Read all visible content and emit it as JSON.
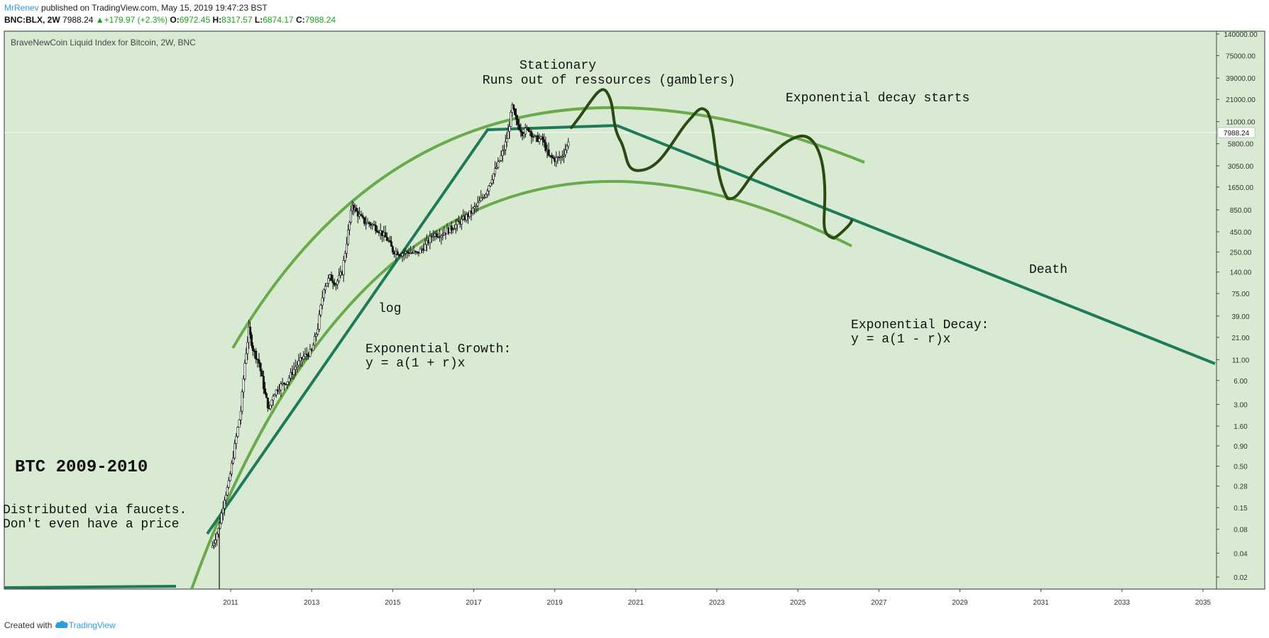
{
  "header": {
    "author": "MrRenev",
    "published": " published on TradingView.com, May 15, 2019 19:47:23 BST"
  },
  "symbol_bar": {
    "symbol": "BNC:BLX, 2W",
    "price": "7988.24",
    "change": "+179.97 (+2.3%)",
    "open_label": "O:",
    "open": "6972.45",
    "high_label": "H:",
    "high": "8317.57",
    "low_label": "L:",
    "low": "6874.17",
    "close_label": "C:",
    "close": "7988.24"
  },
  "footer": {
    "created": "Created with",
    "brand": "TradingView"
  },
  "colors": {
    "background": "#d9ead3",
    "arc": "#6aaa4d",
    "trend": "#1f7a5a",
    "hand": "#2a4a14",
    "candles": "#111111",
    "up_green": "#1aa31a",
    "brand_blue": "#2f9ed8"
  },
  "icons": {
    "tradingview": "tradingview-cloud-icon"
  },
  "chart_data": {
    "type": "candlestick-annotated",
    "title": "BraveNewCoin Liquid Index for Bitcoin, 2W, BNC",
    "y_scale": "log",
    "current_price_label": "7988.24",
    "x_ticks": [
      "2011",
      "2013",
      "2015",
      "2017",
      "2019",
      "2021",
      "2023",
      "2025",
      "2027",
      "2029",
      "2031",
      "2033",
      "2035"
    ],
    "y_ticks": [
      "140000.00",
      "75000.00",
      "39000.00",
      "21000.00",
      "11000.00",
      "5800.00",
      "3050.00",
      "1650.00",
      "850.00",
      "450.00",
      "250.00",
      "140.00",
      "75.00",
      "39.00",
      "21.00",
      "11.00",
      "6.00",
      "3.00",
      "1.60",
      "0.90",
      "0.50",
      "0.28",
      "0.15",
      "0.08",
      "0.04",
      "0.02"
    ],
    "price_path": [
      [
        2010.55,
        0.05
      ],
      [
        2010.7,
        0.08
      ],
      [
        2010.85,
        0.2
      ],
      [
        2010.95,
        0.3
      ],
      [
        2011.1,
        0.9
      ],
      [
        2011.25,
        2.5
      ],
      [
        2011.35,
        10
      ],
      [
        2011.45,
        26
      ],
      [
        2011.55,
        15
      ],
      [
        2011.7,
        10
      ],
      [
        2011.85,
        4
      ],
      [
        2011.95,
        2.5
      ],
      [
        2012.05,
        4
      ],
      [
        2012.2,
        5
      ],
      [
        2012.4,
        6
      ],
      [
        2012.6,
        9
      ],
      [
        2012.8,
        12
      ],
      [
        2013.0,
        14
      ],
      [
        2013.15,
        28
      ],
      [
        2013.3,
        90
      ],
      [
        2013.45,
        120
      ],
      [
        2013.6,
        100
      ],
      [
        2013.75,
        140
      ],
      [
        2013.9,
        450
      ],
      [
        2014.0,
        1000
      ],
      [
        2014.1,
        800
      ],
      [
        2014.3,
        600
      ],
      [
        2014.5,
        550
      ],
      [
        2014.7,
        450
      ],
      [
        2014.9,
        340
      ],
      [
        2015.0,
        260
      ],
      [
        2015.2,
        240
      ],
      [
        2015.4,
        250
      ],
      [
        2015.6,
        240
      ],
      [
        2015.8,
        300
      ],
      [
        2016.0,
        420
      ],
      [
        2016.2,
        420
      ],
      [
        2016.45,
        500
      ],
      [
        2016.7,
        620
      ],
      [
        2016.9,
        760
      ],
      [
        2017.1,
        1000
      ],
      [
        2017.3,
        1400
      ],
      [
        2017.45,
        2200
      ],
      [
        2017.6,
        3200
      ],
      [
        2017.75,
        5000
      ],
      [
        2017.85,
        8000
      ],
      [
        2017.95,
        17000
      ],
      [
        2018.05,
        11000
      ],
      [
        2018.2,
        8000
      ],
      [
        2018.35,
        9000
      ],
      [
        2018.5,
        6800
      ],
      [
        2018.7,
        6500
      ],
      [
        2018.85,
        4000
      ],
      [
        2019.0,
        3700
      ],
      [
        2019.15,
        3900
      ],
      [
        2019.3,
        5300
      ],
      [
        2019.37,
        7988
      ]
    ],
    "annotations": {
      "stationary": "Stationary",
      "runs_out": "Runs out of ressources (gamblers)",
      "decay_starts": "Exponential decay starts",
      "death": "Death",
      "log": "log",
      "growth_title": "Exponential Growth:",
      "growth_formula": "y = a(1 + r)x",
      "decay_title": "Exponential Decay:",
      "decay_formula": "y = a(1 - r)x",
      "btc_years": "BTC 2009-2010",
      "faucets": "Distributed via faucets.",
      "no_price": "Don't even have a price"
    }
  }
}
